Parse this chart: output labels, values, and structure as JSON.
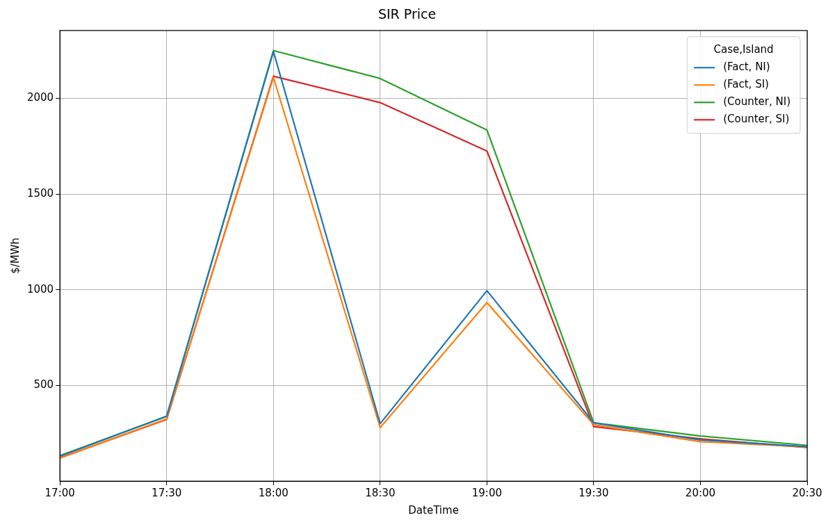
{
  "chart_data": {
    "type": "line",
    "title": "SIR Price",
    "xlabel": "DateTime",
    "ylabel": "$/MWh",
    "legend_title": "Case,Island",
    "legend": "top right",
    "grid": true,
    "line_style": "solid",
    "marker": "none",
    "x": [
      17,
      17.5,
      18,
      18.5,
      19,
      19.5,
      20,
      20.5
    ],
    "xlim": [
      17,
      20.5
    ],
    "xticks": [
      {
        "value": 17,
        "label": "17:00"
      },
      {
        "value": 17.5,
        "label": "17:30"
      },
      {
        "value": 18,
        "label": "18:00"
      },
      {
        "value": 18.5,
        "label": "18:30"
      },
      {
        "value": 19,
        "label": "19:00"
      },
      {
        "value": 19.5,
        "label": "19:30"
      },
      {
        "value": 20,
        "label": "20:00"
      },
      {
        "value": 20.5,
        "label": "20:30"
      }
    ],
    "ylim": [
      0,
      2355
    ],
    "yticks": [
      500,
      1000,
      1500,
      2000
    ],
    "series": [
      {
        "name": "(Fact, NI)",
        "color": "#1f77b4",
        "values": [
          130,
          340,
          2245,
          300,
          995,
          305,
          215,
          180
        ]
      },
      {
        "name": "(Fact, SI)",
        "color": "#ff7f0e",
        "values": [
          120,
          325,
          2110,
          280,
          933,
          295,
          206,
          178
        ]
      },
      {
        "name": "(Counter, NI)",
        "color": "#2ca02c",
        "values": [
          133,
          338,
          2250,
          2104,
          1835,
          305,
          236,
          187
        ]
      },
      {
        "name": "(Counter, SI)",
        "color": "#d62728",
        "values": [
          121,
          323,
          2116,
          1978,
          1725,
          285,
          221,
          176
        ]
      }
    ]
  }
}
